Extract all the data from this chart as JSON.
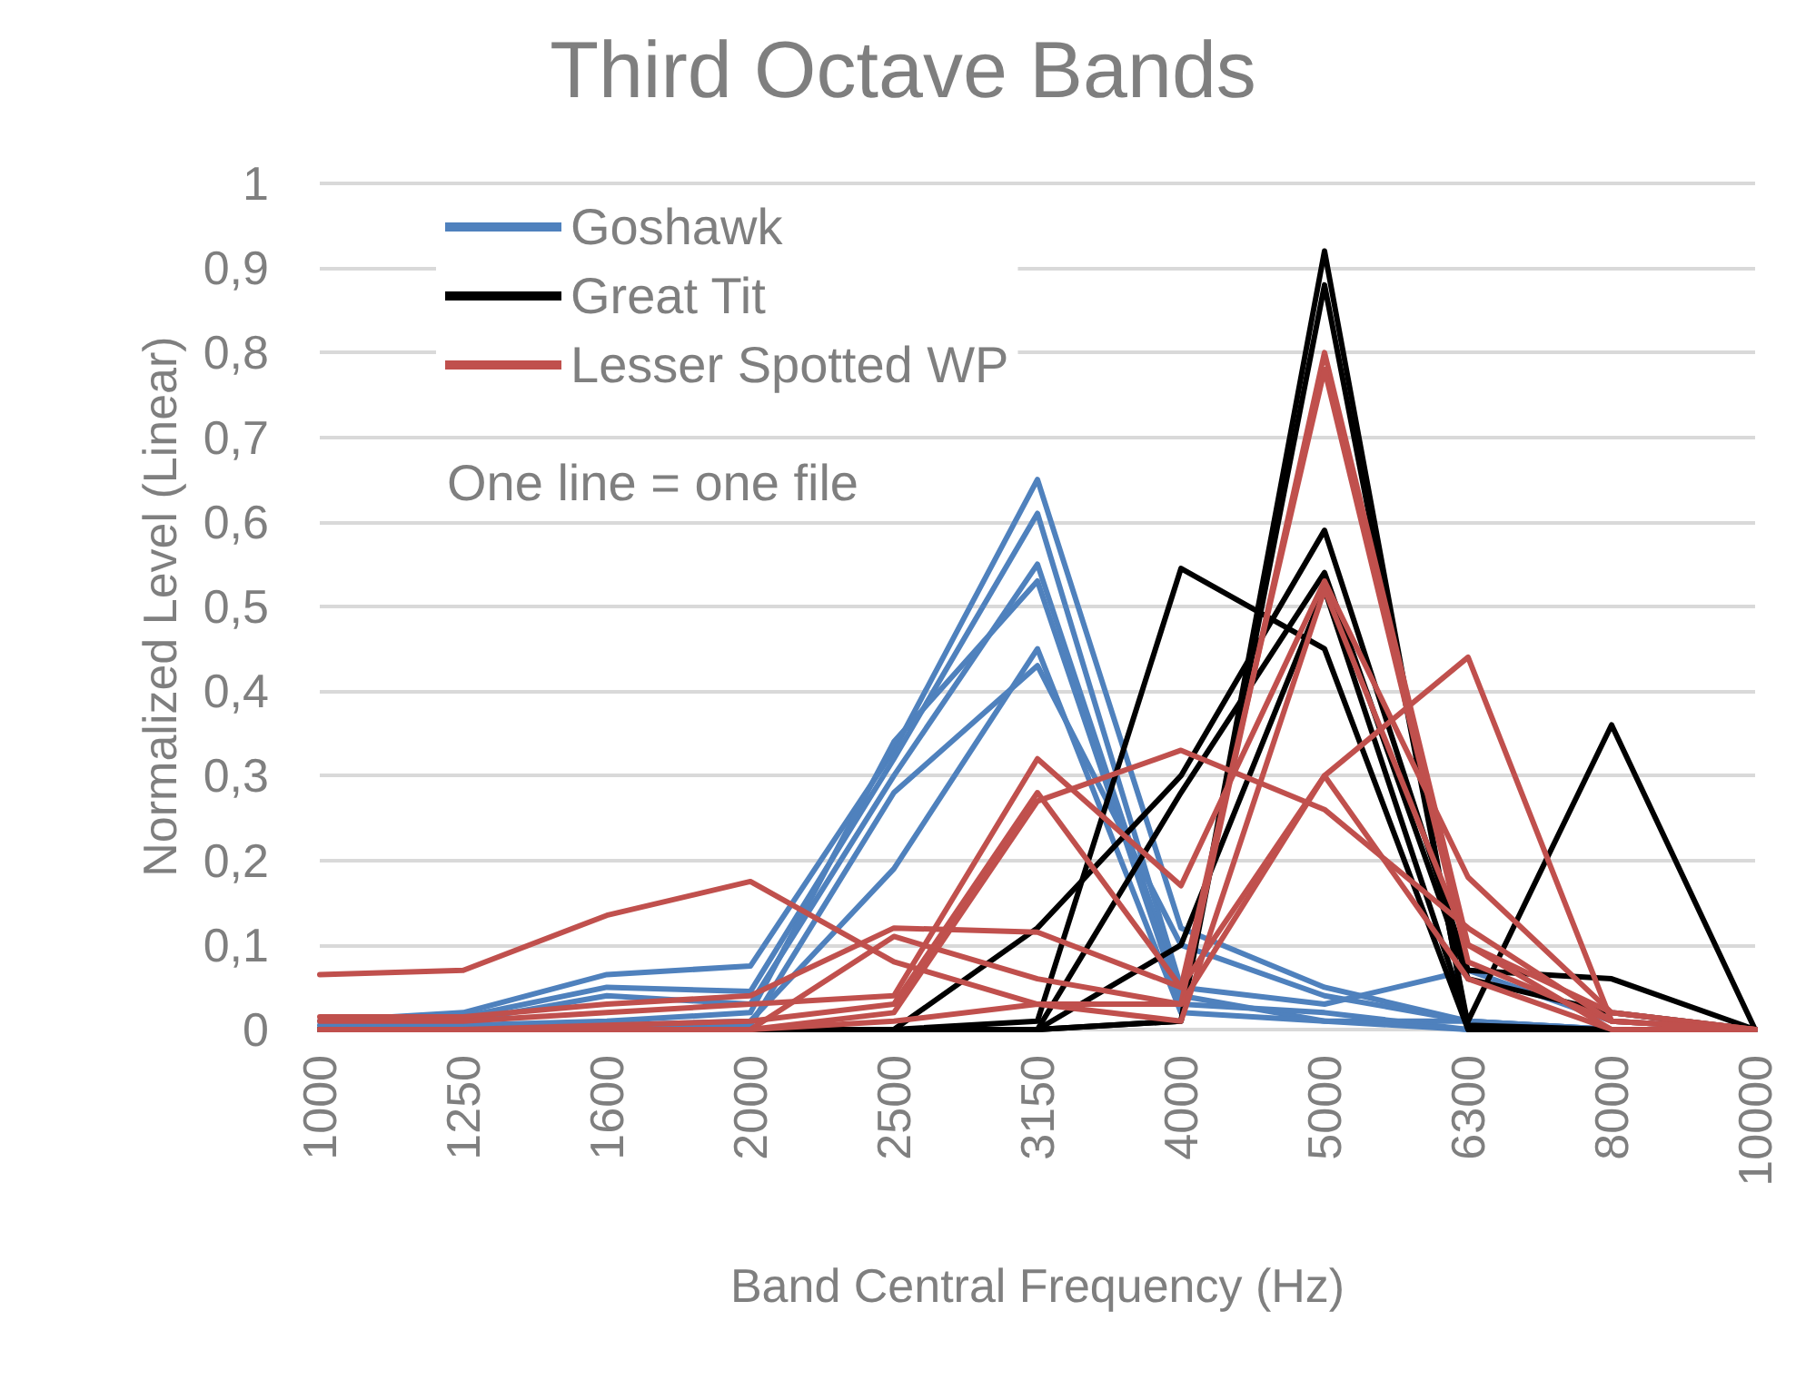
{
  "chart_data": {
    "type": "line",
    "title": "Third Octave Bands",
    "xlabel": "Band Central Frequency (Hz)",
    "ylabel": "Normalized Level (Linear)",
    "annotations": [
      "One line = one file"
    ],
    "categories": [
      "1000",
      "1250",
      "1600",
      "2000",
      "2500",
      "3150",
      "4000",
      "5000",
      "6300",
      "8000",
      "10000"
    ],
    "ylim": [
      0,
      1
    ],
    "yticks": [
      0,
      {
        "value": 0.1,
        "label": "0,1"
      },
      {
        "value": 0.2,
        "label": "0,2"
      },
      {
        "value": 0.3,
        "label": "0,3"
      },
      {
        "value": 0.4,
        "label": "0,4"
      },
      {
        "value": 0.5,
        "label": "0,5"
      },
      {
        "value": 0.6,
        "label": "0,6"
      },
      {
        "value": 0.7,
        "label": "0,7"
      },
      {
        "value": 0.8,
        "label": "0,8"
      },
      {
        "value": 0.9,
        "label": "0,9"
      },
      1
    ],
    "grid": "y",
    "legend": "top left",
    "marker": "none",
    "line_style": "solid",
    "series": [
      {
        "name": "Goshawk",
        "color": "#4f81bd",
        "values": [
          0.01,
          0.02,
          0.065,
          0.075,
          0.33,
          0.65,
          0.12,
          0.05,
          0.01,
          0,
          0
        ]
      },
      {
        "color": "#4f81bd",
        "values": [
          0.005,
          0.015,
          0.05,
          0.045,
          0.32,
          0.61,
          0.05,
          0.03,
          0.07,
          0.01,
          0
        ]
      },
      {
        "color": "#4f81bd",
        "values": [
          0,
          0.01,
          0.04,
          0.03,
          0.3,
          0.55,
          0.04,
          0.01,
          0.01,
          0,
          0
        ]
      },
      {
        "color": "#4f81bd",
        "values": [
          0,
          0.005,
          0.01,
          0.02,
          0.34,
          0.53,
          0.03,
          0.02,
          0,
          0,
          0
        ]
      },
      {
        "color": "#4f81bd",
        "values": [
          0,
          0,
          0.005,
          0.01,
          0.19,
          0.45,
          0.02,
          0.01,
          0,
          0,
          0
        ]
      },
      {
        "color": "#4f81bd",
        "values": [
          0,
          0,
          0,
          0.005,
          0.28,
          0.43,
          0.1,
          0.04,
          0.01,
          0,
          0
        ]
      },
      {
        "name": "Great Tit",
        "color": "#000000",
        "values": [
          0,
          0,
          0,
          0,
          0,
          0,
          0.01,
          0.92,
          0,
          0,
          0
        ]
      },
      {
        "color": "#000000",
        "values": [
          0,
          0,
          0,
          0,
          0,
          0,
          0.01,
          0.88,
          0.005,
          0,
          0
        ]
      },
      {
        "color": "#000000",
        "values": [
          0,
          0,
          0,
          0,
          0,
          0.12,
          0.3,
          0.59,
          0.07,
          0.06,
          0
        ]
      },
      {
        "color": "#000000",
        "values": [
          0,
          0,
          0,
          0,
          0,
          0,
          0.28,
          0.54,
          0.06,
          0.02,
          0
        ]
      },
      {
        "color": "#000000",
        "values": [
          0,
          0,
          0,
          0,
          0,
          0.01,
          0.545,
          0.45,
          0,
          0,
          0
        ]
      },
      {
        "color": "#000000",
        "values": [
          0,
          0,
          0,
          0,
          0,
          0,
          0.1,
          0.52,
          0.01,
          0.36,
          0
        ]
      },
      {
        "name": "Lesser Spotted WP",
        "color": "#c0504d",
        "values": [
          0.065,
          0.07,
          0.135,
          0.175,
          0.08,
          0.03,
          0.03,
          0.8,
          0.1,
          0.02,
          0
        ]
      },
      {
        "color": "#c0504d",
        "values": [
          0.015,
          0.015,
          0.03,
          0.04,
          0.12,
          0.115,
          0.05,
          0.78,
          0.08,
          0.01,
          0
        ]
      },
      {
        "color": "#c0504d",
        "values": [
          0.01,
          0.01,
          0.02,
          0.03,
          0.04,
          0.32,
          0.17,
          0.53,
          0.18,
          0.02,
          0
        ]
      },
      {
        "color": "#c0504d",
        "values": [
          0,
          0,
          0.005,
          0.01,
          0.03,
          0.28,
          0.05,
          0.3,
          0.44,
          0.01,
          0
        ]
      },
      {
        "color": "#c0504d",
        "values": [
          0,
          0,
          0,
          0,
          0.02,
          0.27,
          0.33,
          0.26,
          0.12,
          0.01,
          0
        ]
      },
      {
        "color": "#c0504d",
        "values": [
          0,
          0,
          0,
          0,
          0.11,
          0.06,
          0.03,
          0.3,
          0.06,
          0,
          0
        ]
      },
      {
        "color": "#c0504d",
        "values": [
          0,
          0,
          0,
          0,
          0.01,
          0.03,
          0.01,
          0.52,
          0.1,
          0,
          0
        ]
      }
    ]
  }
}
